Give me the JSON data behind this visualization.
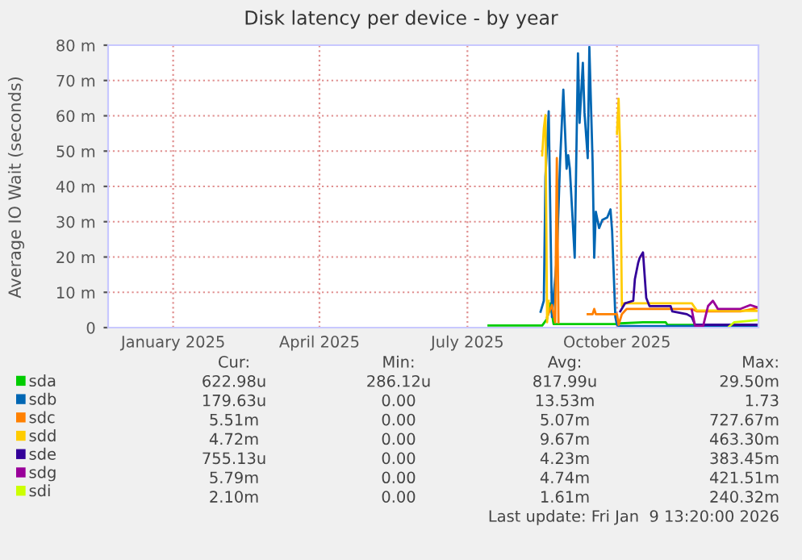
{
  "chart_data": {
    "type": "line",
    "title": "Disk latency per device - by year",
    "ylabel": "Average IO Wait (seconds)",
    "xlim": [
      "2024-12-06",
      "2026-01-10"
    ],
    "xticks": [
      {
        "value": "2025-01-15",
        "label": "January 2025"
      },
      {
        "value": "2025-04-15",
        "label": "April 2025"
      },
      {
        "value": "2025-07-15",
        "label": "July 2025"
      },
      {
        "value": "2025-10-15",
        "label": "October 2025"
      }
    ],
    "ylim": [
      0,
      80
    ],
    "yticks": [
      0,
      {
        "value": 10,
        "label": "10 m"
      },
      {
        "value": 20,
        "label": "20 m"
      },
      {
        "value": 30,
        "label": "30 m"
      },
      {
        "value": 40,
        "label": "40 m"
      },
      {
        "value": 50,
        "label": "50 m"
      },
      {
        "value": 60,
        "label": "60 m"
      },
      {
        "value": 70,
        "label": "70 m"
      },
      {
        "value": 80,
        "label": "80 m"
      }
    ],
    "grid": true,
    "legend": "bottom",
    "series": [
      {
        "name": "sda",
        "color": "#00cc00",
        "x": [
          "2025-07-28",
          "2025-08-30",
          "2025-09-02",
          "2025-09-04",
          "2025-09-06",
          "2025-10-15",
          "2025-10-17",
          "2025-10-31",
          "2025-11-14",
          "2025-11-15",
          "2026-01-09"
        ],
        "values": [
          0.6,
          0.6,
          2.5,
          6.9,
          1.0,
          1.0,
          1.2,
          1.5,
          1.5,
          0.8,
          0.6
        ]
      },
      {
        "name": "sdb",
        "color": "#0066b3",
        "x": [
          "2025-08-29",
          "2025-08-31",
          "2025-09-01",
          "2025-09-03",
          "2025-09-05",
          "2025-09-08",
          "2025-09-10",
          "2025-09-12",
          "2025-09-14",
          "2025-09-15",
          "2025-09-16",
          "2025-09-19",
          "2025-09-21",
          "2025-09-22",
          "2025-09-24",
          "2025-09-25",
          "2025-09-27",
          "2025-09-28",
          "2025-09-30",
          "2025-10-01",
          "2025-10-02",
          "2025-10-04",
          "2025-10-06",
          "2025-10-09",
          "2025-10-11",
          "2025-10-12",
          "2025-10-14",
          "2025-10-15",
          "2025-10-16",
          "2025-11-30",
          "2026-01-09"
        ],
        "values": [
          4.5,
          7.6,
          42.7,
          61.3,
          3.0,
          19.8,
          47.0,
          67.4,
          45.0,
          48.8,
          45.0,
          19.8,
          77.7,
          58.0,
          75.0,
          61.0,
          48.0,
          79.5,
          47.0,
          19.8,
          32.8,
          28.2,
          30.5,
          31.2,
          33.5,
          27.4,
          3.0,
          0.8,
          0.5,
          0.4,
          0.2
        ]
      },
      {
        "name": "sdc",
        "color": "#ff8000",
        "x": [
          "2025-09-02",
          "2025-09-05",
          "2025-09-06",
          "2025-09-07",
          "2025-09-08",
          "2025-09-09",
          "2025-09-20",
          "2025-09-27",
          "2025-09-30",
          "2025-10-01",
          "2025-10-02",
          "2025-10-15",
          "2025-10-16",
          "2025-10-18",
          "2025-10-21",
          "2025-11-30",
          "2025-12-03",
          "2025-12-30",
          "2026-01-09"
        ],
        "values": [
          3.0,
          6.4,
          3.8,
          1.5,
          48.0,
          1.5,
          null,
          3.8,
          3.8,
          5.3,
          3.8,
          3.8,
          0.8,
          3.8,
          5.3,
          5.3,
          4.6,
          4.6,
          5.5
        ]
      },
      {
        "name": "sdd",
        "color": "#ffcc00",
        "x": [
          "2025-08-30",
          "2025-08-31",
          "2025-09-01",
          "2025-09-02",
          "2025-09-03",
          "2025-09-20",
          "2025-10-15",
          "2025-10-16",
          "2025-10-17",
          "2025-10-18",
          "2025-10-19",
          "2025-11-30",
          "2025-12-03",
          "2026-01-09"
        ],
        "values": [
          48.8,
          56.4,
          60.2,
          1.5,
          7.6,
          null,
          54.9,
          64.8,
          49.5,
          6.1,
          6.9,
          6.9,
          4.9,
          4.7
        ]
      },
      {
        "name": "sde",
        "color": "#330099",
        "x": [
          "2025-10-17",
          "2025-10-20",
          "2025-10-25",
          "2025-10-26",
          "2025-10-28",
          "2025-10-29",
          "2025-10-31",
          "2025-11-02",
          "2025-11-04",
          "2025-11-17",
          "2025-11-18",
          "2025-11-27",
          "2025-11-30",
          "2025-12-02",
          "2026-01-09"
        ],
        "values": [
          4.6,
          6.9,
          7.6,
          13.7,
          18.3,
          19.8,
          21.3,
          8.4,
          6.1,
          6.1,
          4.6,
          3.8,
          3.0,
          0.8,
          0.8
        ]
      },
      {
        "name": "sdg",
        "color": "#990099",
        "x": [
          "2025-11-30",
          "2025-12-02",
          "2025-12-07",
          "2025-12-10",
          "2025-12-13",
          "2025-12-15",
          "2025-12-16",
          "2025-12-30",
          "2026-01-05",
          "2026-01-09"
        ],
        "values": [
          5.0,
          0.5,
          0.5,
          6.1,
          7.6,
          6.1,
          5.3,
          5.3,
          6.4,
          5.8
        ]
      },
      {
        "name": "sdi",
        "color": "#ccff00",
        "x": [
          "2025-12-23",
          "2025-12-26",
          "2026-01-09"
        ],
        "values": [
          0.3,
          1.5,
          2.1
        ]
      }
    ],
    "annotations": [
      "Cur:",
      "Min:",
      "Avg:",
      "Max:",
      "622.98u",
      "286.12u",
      "817.99u",
      "29.50m",
      "179.63u",
      "0.00",
      "13.53m",
      "1.73",
      "5.51m",
      "0.00",
      "5.07m",
      "727.67m",
      "4.72m",
      "0.00",
      "9.67m",
      "463.30m",
      "755.13u",
      "0.00",
      "4.23m",
      "383.45m",
      "5.79m",
      "0.00",
      "4.74m",
      "421.51m",
      "2.10m",
      "0.00",
      "1.61m",
      "240.32m",
      "Last update: Fri Jan  9 13:20:00 2026"
    ]
  }
}
